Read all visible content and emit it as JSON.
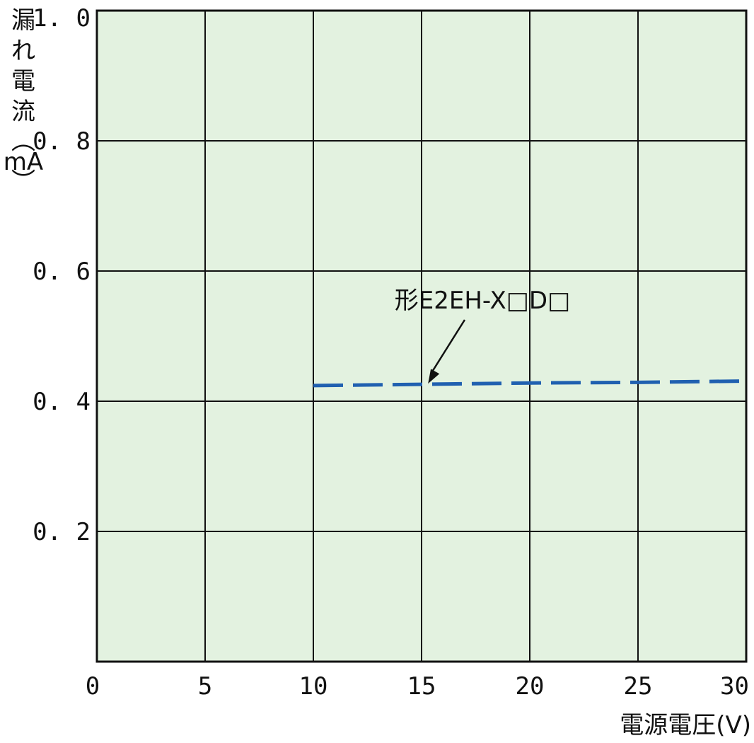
{
  "chart_data": {
    "type": "line",
    "xlabel": "電源電圧(V)",
    "ylabel_chars": [
      "漏",
      "れ",
      "電",
      "流",
      "︵",
      "mA",
      "︶"
    ],
    "xlim": [
      0,
      30
    ],
    "ylim": [
      0,
      1.0
    ],
    "x_ticks": [
      0,
      5,
      10,
      15,
      20,
      25,
      30
    ],
    "x_tick_labels": [
      "0",
      "5",
      "10",
      "15",
      "20",
      "25",
      "30"
    ],
    "y_ticks": [
      0.2,
      0.4,
      0.6,
      0.8,
      1.0
    ],
    "y_tick_labels": [
      "0. 2",
      "0. 4",
      "0. 6",
      "0. 8",
      "1. 0"
    ],
    "grid": true,
    "series": [
      {
        "name": "形E2EH-X□D□",
        "line_style": "dashed",
        "color": "#2060b0",
        "x": [
          10,
          15,
          20,
          25,
          30
        ],
        "y": [
          0.424,
          0.426,
          0.428,
          0.429,
          0.431
        ]
      }
    ],
    "annotation": {
      "text": "形E2EH-X□D□",
      "target_x": 15.3,
      "target_y": 0.427
    },
    "plot_background": "#e3f2e0"
  }
}
